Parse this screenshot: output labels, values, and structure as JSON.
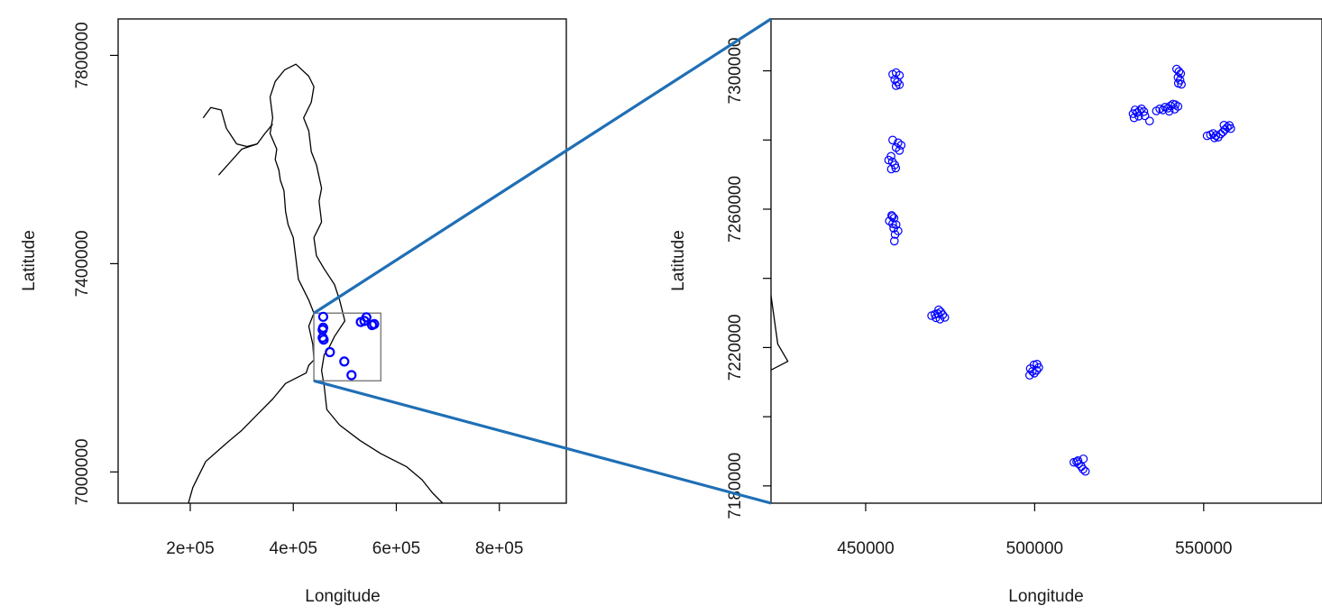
{
  "chart_data": [
    {
      "type": "scatter",
      "panel": "overview-map",
      "xlabel": "Longitude",
      "ylabel": "Latitude",
      "xlim": [
        60000,
        930000
      ],
      "ylim": [
        6940000,
        7870000
      ],
      "x_ticks": [
        200000,
        400000,
        600000,
        800000
      ],
      "x_tick_labels": [
        "2e+05",
        "4e+05",
        "6e+05",
        "8e+05"
      ],
      "y_ticks": [
        7000000,
        7400000,
        7800000
      ],
      "y_tick_labels": [
        "7000000",
        "7400000",
        "7800000"
      ],
      "grid": false,
      "point_color": "#0000ff",
      "outline_color": "#000000",
      "inset_box": {
        "x": [
          440000,
          570000
        ],
        "y": [
          7175000,
          7305000
        ],
        "color": "#808080"
      },
      "outline": [
        [
          195000,
          6935000
        ],
        [
          205000,
          6970000
        ],
        [
          230000,
          7020000
        ],
        [
          270000,
          7055000
        ],
        [
          300000,
          7080000
        ],
        [
          330000,
          7110000
        ],
        [
          360000,
          7140000
        ],
        [
          385000,
          7170000
        ],
        [
          425000,
          7190000
        ],
        [
          430000,
          7205000
        ],
        [
          440000,
          7215000
        ],
        [
          438000,
          7245000
        ],
        [
          430000,
          7280000
        ],
        [
          440000,
          7305000
        ],
        [
          430000,
          7330000
        ],
        [
          410000,
          7370000
        ],
        [
          405000,
          7410000
        ],
        [
          400000,
          7450000
        ],
        [
          390000,
          7475000
        ],
        [
          385000,
          7500000
        ],
        [
          382000,
          7540000
        ],
        [
          375000,
          7560000
        ],
        [
          372000,
          7580000
        ],
        [
          365000,
          7600000
        ],
        [
          368000,
          7620000
        ],
        [
          355000,
          7650000
        ],
        [
          360000,
          7680000
        ],
        [
          355000,
          7720000
        ],
        [
          365000,
          7750000
        ],
        [
          383000,
          7772000
        ],
        [
          405000,
          7783000
        ],
        [
          430000,
          7760000
        ],
        [
          440000,
          7740000
        ],
        [
          435000,
          7710000
        ],
        [
          420000,
          7680000
        ],
        [
          430000,
          7655000
        ],
        [
          435000,
          7615000
        ],
        [
          445000,
          7590000
        ],
        [
          455000,
          7545000
        ],
        [
          450000,
          7520000
        ],
        [
          455000,
          7480000
        ],
        [
          440000,
          7450000
        ],
        [
          445000,
          7415000
        ],
        [
          460000,
          7390000
        ],
        [
          480000,
          7360000
        ],
        [
          490000,
          7330000
        ],
        [
          500000,
          7290000
        ],
        [
          480000,
          7260000
        ],
        [
          470000,
          7240000
        ],
        [
          460000,
          7225000
        ],
        [
          455000,
          7195000
        ],
        [
          460000,
          7165000
        ],
        [
          465000,
          7120000
        ],
        [
          490000,
          7090000
        ],
        [
          530000,
          7060000
        ],
        [
          570000,
          7035000
        ],
        [
          620000,
          7010000
        ],
        [
          650000,
          6985000
        ],
        [
          670000,
          6960000
        ],
        [
          690000,
          6940000
        ],
        [
          710000,
          6935000
        ]
      ],
      "outline2": [
        [
          255000,
          7570000
        ],
        [
          300000,
          7620000
        ],
        [
          330000,
          7630000
        ],
        [
          345000,
          7650000
        ],
        [
          360000,
          7668000
        ]
      ],
      "outline3": [
        [
          225000,
          7680000
        ],
        [
          240000,
          7700000
        ],
        [
          260000,
          7695000
        ],
        [
          270000,
          7660000
        ],
        [
          290000,
          7630000
        ],
        [
          310000,
          7625000
        ],
        [
          330000,
          7630000
        ]
      ],
      "points": [
        {
          "x": 458000,
          "y": 7298000
        },
        {
          "x": 458000,
          "y": 7277000
        },
        {
          "x": 457000,
          "y": 7273000
        },
        {
          "x": 457000,
          "y": 7258000
        },
        {
          "x": 459000,
          "y": 7254000
        },
        {
          "x": 471000,
          "y": 7230000
        },
        {
          "x": 499000,
          "y": 7212000
        },
        {
          "x": 513000,
          "y": 7186000
        },
        {
          "x": 531000,
          "y": 7288000
        },
        {
          "x": 538000,
          "y": 7290000
        },
        {
          "x": 542000,
          "y": 7297000
        },
        {
          "x": 553000,
          "y": 7282000
        },
        {
          "x": 557000,
          "y": 7284000
        }
      ]
    },
    {
      "type": "scatter",
      "panel": "zoom-inset",
      "xlabel": "Longitude",
      "ylabel": "Latitude",
      "xlim": [
        422000,
        585000
      ],
      "ylim": [
        7175000,
        7315000
      ],
      "x_ticks": [
        450000,
        500000,
        550000
      ],
      "x_tick_labels": [
        "450000",
        "500000",
        "550000"
      ],
      "y_ticks": [
        7180000,
        7200000,
        7220000,
        7240000,
        7260000,
        7280000,
        7300000
      ],
      "y_tick_labels": [
        "7180000",
        "",
        "7220000",
        "",
        "7260000",
        "",
        "7300000"
      ],
      "grid": false,
      "point_color": "#0000ff",
      "outline_color": "#000000",
      "outline": [
        [
          421000,
          7248000
        ],
        [
          422000,
          7235000
        ],
        [
          424000,
          7221000
        ],
        [
          427000,
          7216000
        ],
        [
          421000,
          7213000
        ]
      ],
      "points": [
        {
          "x": 458000,
          "y": 7299000
        },
        {
          "x": 459000,
          "y": 7299500
        },
        {
          "x": 460000,
          "y": 7298700
        },
        {
          "x": 458600,
          "y": 7297500
        },
        {
          "x": 459400,
          "y": 7296800
        },
        {
          "x": 459000,
          "y": 7295700
        },
        {
          "x": 460000,
          "y": 7296000
        },
        {
          "x": 458000,
          "y": 7280000
        },
        {
          "x": 459600,
          "y": 7279200
        },
        {
          "x": 460500,
          "y": 7278500
        },
        {
          "x": 459000,
          "y": 7277800
        },
        {
          "x": 460000,
          "y": 7277000
        },
        {
          "x": 457500,
          "y": 7275300
        },
        {
          "x": 456800,
          "y": 7274200
        },
        {
          "x": 457900,
          "y": 7273700
        },
        {
          "x": 458600,
          "y": 7272800
        },
        {
          "x": 457600,
          "y": 7271600
        },
        {
          "x": 458900,
          "y": 7271900
        },
        {
          "x": 457700,
          "y": 7258200
        },
        {
          "x": 458400,
          "y": 7257400
        },
        {
          "x": 457000,
          "y": 7256600
        },
        {
          "x": 458000,
          "y": 7255800
        },
        {
          "x": 459000,
          "y": 7255500
        },
        {
          "x": 458300,
          "y": 7254500
        },
        {
          "x": 459600,
          "y": 7253700
        },
        {
          "x": 458700,
          "y": 7252700
        },
        {
          "x": 458500,
          "y": 7250800
        },
        {
          "x": 457900,
          "y": 7257900
        },
        {
          "x": 469500,
          "y": 7229200
        },
        {
          "x": 470500,
          "y": 7229600
        },
        {
          "x": 471300,
          "y": 7229800
        },
        {
          "x": 472200,
          "y": 7230300
        },
        {
          "x": 472800,
          "y": 7229500
        },
        {
          "x": 473400,
          "y": 7228700
        },
        {
          "x": 470800,
          "y": 7228600
        },
        {
          "x": 472000,
          "y": 7228200
        },
        {
          "x": 471600,
          "y": 7230900
        },
        {
          "x": 498700,
          "y": 7213900
        },
        {
          "x": 499300,
          "y": 7213100
        },
        {
          "x": 499900,
          "y": 7212600
        },
        {
          "x": 500600,
          "y": 7213400
        },
        {
          "x": 501200,
          "y": 7214200
        },
        {
          "x": 499800,
          "y": 7215000
        },
        {
          "x": 500700,
          "y": 7215200
        },
        {
          "x": 498500,
          "y": 7212000
        },
        {
          "x": 511600,
          "y": 7186800
        },
        {
          "x": 512400,
          "y": 7187000
        },
        {
          "x": 513000,
          "y": 7186400
        },
        {
          "x": 513800,
          "y": 7185600
        },
        {
          "x": 514300,
          "y": 7184800
        },
        {
          "x": 515000,
          "y": 7184200
        },
        {
          "x": 514400,
          "y": 7187800
        },
        {
          "x": 512800,
          "y": 7187300
        },
        {
          "x": 529100,
          "y": 7287600
        },
        {
          "x": 529700,
          "y": 7288700
        },
        {
          "x": 530300,
          "y": 7287900
        },
        {
          "x": 531000,
          "y": 7288400
        },
        {
          "x": 531600,
          "y": 7289000
        },
        {
          "x": 532300,
          "y": 7288200
        },
        {
          "x": 529400,
          "y": 7286400
        },
        {
          "x": 530800,
          "y": 7286900
        },
        {
          "x": 532600,
          "y": 7287000
        },
        {
          "x": 534000,
          "y": 7285500
        },
        {
          "x": 536000,
          "y": 7288400
        },
        {
          "x": 537000,
          "y": 7289000
        },
        {
          "x": 537900,
          "y": 7288700
        },
        {
          "x": 538600,
          "y": 7289500
        },
        {
          "x": 539400,
          "y": 7289200
        },
        {
          "x": 540200,
          "y": 7289900
        },
        {
          "x": 540900,
          "y": 7290400
        },
        {
          "x": 541600,
          "y": 7290200
        },
        {
          "x": 542400,
          "y": 7289700
        },
        {
          "x": 541400,
          "y": 7288900
        },
        {
          "x": 539800,
          "y": 7288300
        },
        {
          "x": 542000,
          "y": 7300500
        },
        {
          "x": 542700,
          "y": 7299800
        },
        {
          "x": 543200,
          "y": 7299200
        },
        {
          "x": 542400,
          "y": 7298100
        },
        {
          "x": 543000,
          "y": 7297300
        },
        {
          "x": 542500,
          "y": 7296400
        },
        {
          "x": 543400,
          "y": 7296100
        },
        {
          "x": 551000,
          "y": 7281200
        },
        {
          "x": 552000,
          "y": 7281500
        },
        {
          "x": 552800,
          "y": 7281900
        },
        {
          "x": 553600,
          "y": 7281300
        },
        {
          "x": 554300,
          "y": 7280800
        },
        {
          "x": 555000,
          "y": 7281700
        },
        {
          "x": 555700,
          "y": 7282300
        },
        {
          "x": 556300,
          "y": 7283000
        },
        {
          "x": 557000,
          "y": 7283700
        },
        {
          "x": 557600,
          "y": 7284200
        },
        {
          "x": 558000,
          "y": 7283300
        },
        {
          "x": 553200,
          "y": 7280600
        },
        {
          "x": 556000,
          "y": 7284300
        }
      ]
    }
  ],
  "zoom_lines_color": "#1f6fb5"
}
